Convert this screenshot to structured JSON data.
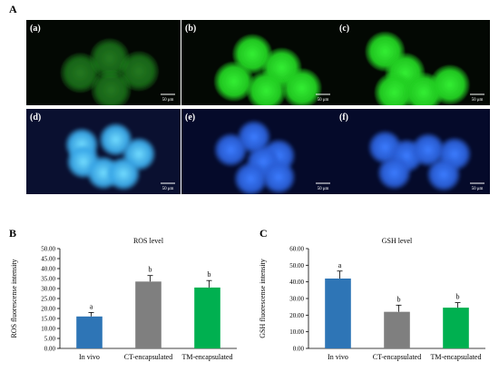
{
  "figure": {
    "panel_A": "A",
    "panel_B": "B",
    "panel_C": "C"
  },
  "micrographs": [
    {
      "label": "(a)",
      "scale": "50 μm",
      "stain": "green",
      "glow": "#1f8a1f",
      "core": "#2f9d2a",
      "cells": [
        [
          0.35,
          0.62
        ],
        [
          0.54,
          0.45
        ],
        [
          0.73,
          0.6
        ],
        [
          0.55,
          0.82
        ]
      ],
      "r": 0.13,
      "intensity": "dim"
    },
    {
      "label": "(b)",
      "scale": "50 μm",
      "stain": "green",
      "glow": "#22d022",
      "core": "#33ee33",
      "cells": [
        [
          0.46,
          0.4
        ],
        [
          0.65,
          0.56
        ],
        [
          0.34,
          0.72
        ],
        [
          0.55,
          0.83
        ],
        [
          0.78,
          0.8
        ]
      ],
      "r": 0.13,
      "intensity": "bright"
    },
    {
      "label": "(c)",
      "scale": "50 μm",
      "stain": "green",
      "glow": "#22d022",
      "core": "#33ee33",
      "cells": [
        [
          0.32,
          0.37
        ],
        [
          0.45,
          0.62
        ],
        [
          0.38,
          0.85
        ],
        [
          0.57,
          0.85
        ],
        [
          0.74,
          0.76
        ]
      ],
      "r": 0.13,
      "intensity": "bright"
    },
    {
      "label": "(d)",
      "scale": "50 μm",
      "stain": "blue",
      "glow": "#3aa8e8",
      "core": "#72dcff",
      "cells": [
        [
          0.36,
          0.42
        ],
        [
          0.58,
          0.36
        ],
        [
          0.73,
          0.53
        ],
        [
          0.37,
          0.62
        ],
        [
          0.5,
          0.75
        ],
        [
          0.63,
          0.76
        ]
      ],
      "r": 0.11,
      "intensity": "bright"
    },
    {
      "label": "(e)",
      "scale": "50 μm",
      "stain": "blue",
      "glow": "#2a5fd8",
      "core": "#3b7cff",
      "cells": [
        [
          0.47,
          0.33
        ],
        [
          0.32,
          0.48
        ],
        [
          0.63,
          0.55
        ],
        [
          0.53,
          0.62
        ],
        [
          0.45,
          0.82
        ],
        [
          0.63,
          0.8
        ]
      ],
      "r": 0.11,
      "intensity": "dim"
    },
    {
      "label": "(f)",
      "scale": "50 μm",
      "stain": "blue",
      "glow": "#2a5fd8",
      "core": "#3b7cff",
      "cells": [
        [
          0.32,
          0.45
        ],
        [
          0.46,
          0.55
        ],
        [
          0.6,
          0.48
        ],
        [
          0.77,
          0.53
        ],
        [
          0.38,
          0.75
        ],
        [
          0.7,
          0.77
        ]
      ],
      "r": 0.11,
      "intensity": "dim"
    }
  ],
  "chart_data": [
    {
      "type": "bar",
      "title": "ROS level",
      "ylabel": "ROS fluorescense intensity",
      "xlabel": "",
      "categories": [
        "In vivo",
        "CT-encapsulated",
        "TM-encapsulated"
      ],
      "values": [
        16.0,
        33.5,
        30.5
      ],
      "errors": [
        2.0,
        3.0,
        3.5
      ],
      "letters": [
        "a",
        "b",
        "b"
      ],
      "colors": [
        "#2e75b6",
        "#7f7f7f",
        "#00b050"
      ],
      "ylim": [
        0,
        50
      ],
      "yticks": [
        "0.00",
        "5.00",
        "10.00",
        "15.00",
        "20.00",
        "25.00",
        "30.00",
        "35.00",
        "40.00",
        "45.00",
        "50.00"
      ],
      "grid": false
    },
    {
      "type": "bar",
      "title": "GSH level",
      "ylabel": "GSH fluorescense intensity",
      "xlabel": "",
      "categories": [
        "In vivo",
        "CT-encapsulated",
        "TM-encapsulated"
      ],
      "values": [
        42.0,
        22.0,
        24.5
      ],
      "errors": [
        4.5,
        4.0,
        3.0
      ],
      "letters": [
        "a",
        "b",
        "b"
      ],
      "colors": [
        "#2e75b6",
        "#7f7f7f",
        "#00b050"
      ],
      "ylim": [
        0,
        60
      ],
      "yticks": [
        "0.00",
        "10.00",
        "20.00",
        "30.00",
        "40.00",
        "50.00",
        "60.00"
      ],
      "grid": false
    }
  ]
}
